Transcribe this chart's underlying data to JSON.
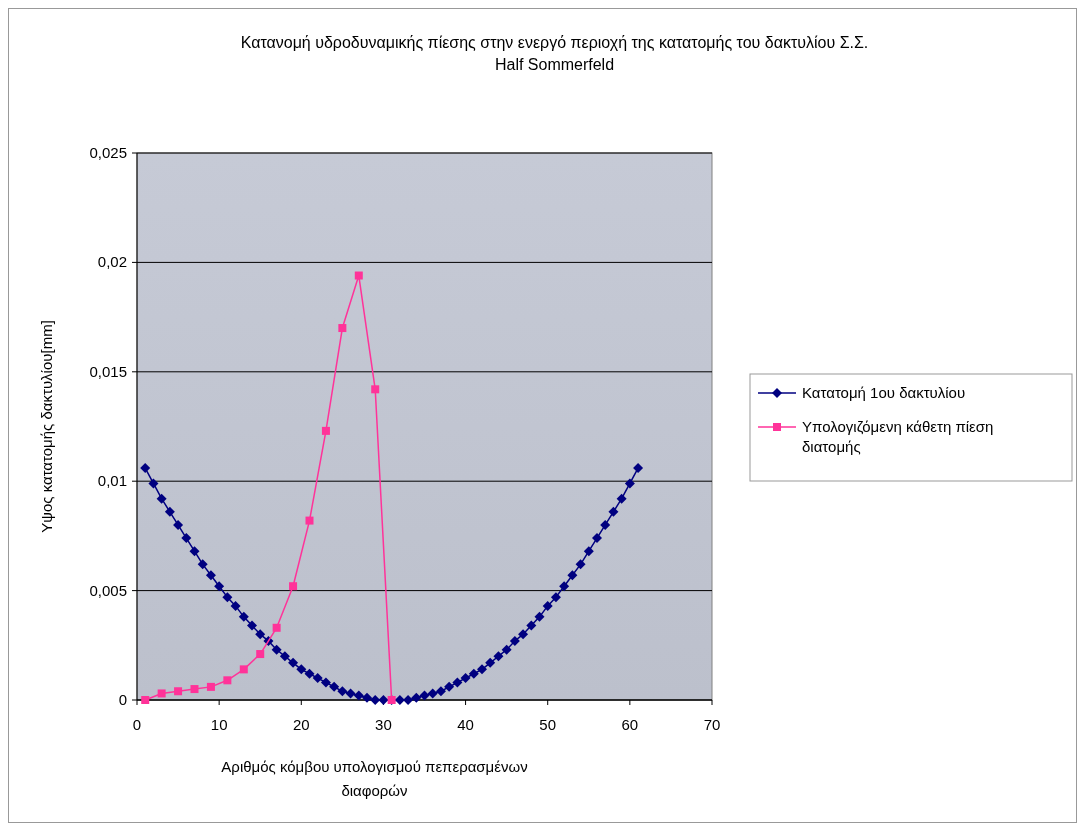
{
  "chart_data": {
    "type": "line",
    "title": "Κατανομή υδροδυναμικής πίεσης στην ενεργό περιοχή της κατατομής του δακτυλίου Σ.Σ. Half Sommerfeld",
    "xlabel": "Αριθμός κόμβου υπολογισμού πεπερασμένων διαφορών",
    "ylabel": "Υψος κατατομής δακτυλίου[mm]",
    "xlim": [
      0,
      70
    ],
    "xticks": [
      0,
      10,
      20,
      30,
      40,
      50,
      60,
      70
    ],
    "ylim": [
      0,
      0.025
    ],
    "yticks": [
      {
        "value": 0,
        "label": "0"
      },
      {
        "value": 0.005,
        "label": "0,005"
      },
      {
        "value": 0.01,
        "label": "0,01"
      },
      {
        "value": 0.015,
        "label": "0,015"
      },
      {
        "value": 0.02,
        "label": "0,02"
      },
      {
        "value": 0.025,
        "label": "0,025"
      }
    ],
    "grid": "y",
    "legend": "right",
    "series": [
      {
        "name": "Κατατομή 1ου δακτυλίου",
        "color": "#000080",
        "marker": "diamond",
        "x": [
          1,
          2,
          3,
          4,
          5,
          6,
          7,
          8,
          9,
          10,
          11,
          12,
          13,
          14,
          15,
          16,
          17,
          18,
          19,
          20,
          21,
          22,
          23,
          24,
          25,
          26,
          27,
          28,
          29,
          30,
          31,
          32,
          33,
          34,
          35,
          36,
          37,
          38,
          39,
          40,
          41,
          42,
          43,
          44,
          45,
          46,
          47,
          48,
          49,
          50,
          51,
          52,
          53,
          54,
          55,
          56,
          57,
          58,
          59,
          60,
          61
        ],
        "values": [
          0.0106,
          0.0099,
          0.0092,
          0.0086,
          0.008,
          0.0074,
          0.0068,
          0.0062,
          0.0057,
          0.0052,
          0.0047,
          0.0043,
          0.0038,
          0.0034,
          0.003,
          0.0027,
          0.0023,
          0.002,
          0.0017,
          0.0014,
          0.0012,
          0.001,
          0.0008,
          0.0006,
          0.0004,
          0.0003,
          0.0002,
          0.0001,
          0,
          0,
          0,
          0,
          0,
          0.0001,
          0.0002,
          0.0003,
          0.0004,
          0.0006,
          0.0008,
          0.001,
          0.0012,
          0.0014,
          0.0017,
          0.002,
          0.0023,
          0.0027,
          0.003,
          0.0034,
          0.0038,
          0.0043,
          0.0047,
          0.0052,
          0.0057,
          0.0062,
          0.0068,
          0.0074,
          0.008,
          0.0086,
          0.0092,
          0.0099,
          0.0106
        ]
      },
      {
        "name": "Υπολογιζόμενη κάθετη πίεση διατομής",
        "color": "#ff3399",
        "marker": "square",
        "x": [
          1,
          3,
          5,
          7,
          9,
          11,
          13,
          15,
          17,
          19,
          21,
          23,
          25,
          27,
          29,
          31
        ],
        "values": [
          0,
          0.0003,
          0.0004,
          0.0005,
          0.0006,
          0.0009,
          0.0014,
          0.0021,
          0.0033,
          0.0052,
          0.0082,
          0.0123,
          0.017,
          0.0194,
          0.0142,
          0
        ]
      }
    ]
  }
}
